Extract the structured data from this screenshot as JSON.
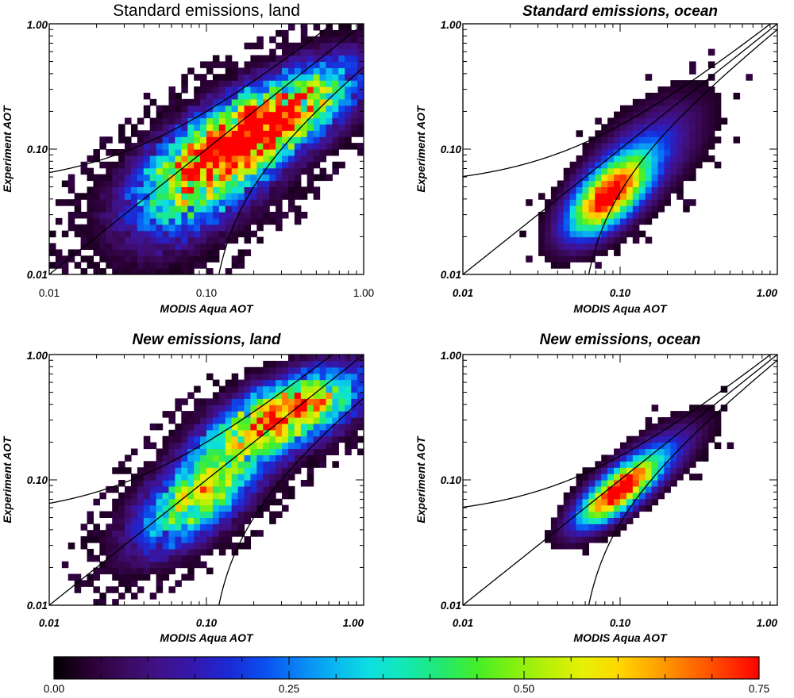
{
  "colormap": [
    "#000000",
    "#2a0033",
    "#3b0a5e",
    "#40128a",
    "#3318b0",
    "#1a2bd6",
    "#0a50f0",
    "#0a86f5",
    "#09b8f0",
    "#0ee0e0",
    "#14e8b0",
    "#22e870",
    "#44ee28",
    "#80f010",
    "#b8f008",
    "#e6f004",
    "#ffd800",
    "#ffa800",
    "#ff7200",
    "#ff3c00",
    "#ff0000"
  ],
  "colorbar": {
    "min": 0.0,
    "max": 0.75,
    "tick_values": [
      0.0,
      0.25,
      0.5,
      0.75
    ],
    "tick_labels": [
      "0.00",
      "0.25",
      "0.50",
      "0.75"
    ]
  },
  "chart_data": [
    {
      "type": "heatmap",
      "id": "p1",
      "title": "Standard emissions, land",
      "title_style": "plain",
      "xlabel": "MODIS Aqua AOT",
      "ylabel": "Experiment AOT",
      "xscale": "log",
      "yscale": "log",
      "xlim": [
        0.01,
        1.0
      ],
      "ylim": [
        0.01,
        1.0
      ],
      "x_ticks": [
        "0.01",
        "0.10",
        "1.00"
      ],
      "y_ticks": [
        "0.01",
        "0.10",
        "1.00"
      ],
      "density_peak_aot": [
        0.25,
        0.17
      ],
      "reference_lines": [
        "y = x",
        "y = 1.5x + 0.05",
        "y = 0.5x - 0.05"
      ]
    },
    {
      "type": "heatmap",
      "id": "p2",
      "title": "Standard emissions, ocean",
      "title_style": "bold-italic",
      "xlabel": "MODIS Aqua AOT",
      "ylabel": "Experiment AOT",
      "xscale": "log",
      "yscale": "log",
      "xlim": [
        0.01,
        1.0
      ],
      "ylim": [
        0.01,
        1.0
      ],
      "x_ticks": [
        "0.01",
        "0.10",
        "1.00"
      ],
      "y_ticks": [
        "0.01",
        "0.10",
        "1.00"
      ],
      "density_peak_aot": [
        0.08,
        0.04
      ],
      "reference_lines": [
        "y = x",
        "y = 1.05x + 0.05",
        "y = 0.95x - 0.05"
      ]
    },
    {
      "type": "heatmap",
      "id": "p3",
      "title": "New emissions, land",
      "title_style": "bold-italic",
      "xlabel": "MODIS Aqua AOT",
      "ylabel": "Experiment AOT",
      "xscale": "log",
      "yscale": "log",
      "xlim": [
        0.01,
        1.0
      ],
      "ylim": [
        0.01,
        1.0
      ],
      "x_ticks": [
        "0.01",
        "0.10",
        "1.00"
      ],
      "y_ticks": [
        "0.01",
        "0.10",
        "1.00"
      ],
      "density_peak_aot": [
        0.3,
        0.35
      ],
      "reference_lines": [
        "y = x",
        "y = 1.5x + 0.05",
        "y = 0.5x - 0.05"
      ]
    },
    {
      "type": "heatmap",
      "id": "p4",
      "title": "New emissions, ocean",
      "title_style": "bold-italic",
      "xlabel": "MODIS Aqua AOT",
      "ylabel": "Experiment AOT",
      "xscale": "log",
      "yscale": "log",
      "xlim": [
        0.01,
        1.0
      ],
      "ylim": [
        0.01,
        1.0
      ],
      "x_ticks": [
        "0.01",
        "0.10",
        "1.00"
      ],
      "y_ticks": [
        "0.01",
        "0.10",
        "1.00"
      ],
      "density_peak_aot": [
        0.09,
        0.08
      ],
      "reference_lines": [
        "y = x",
        "y = 1.05x + 0.05",
        "y = 0.95x - 0.05"
      ]
    }
  ]
}
